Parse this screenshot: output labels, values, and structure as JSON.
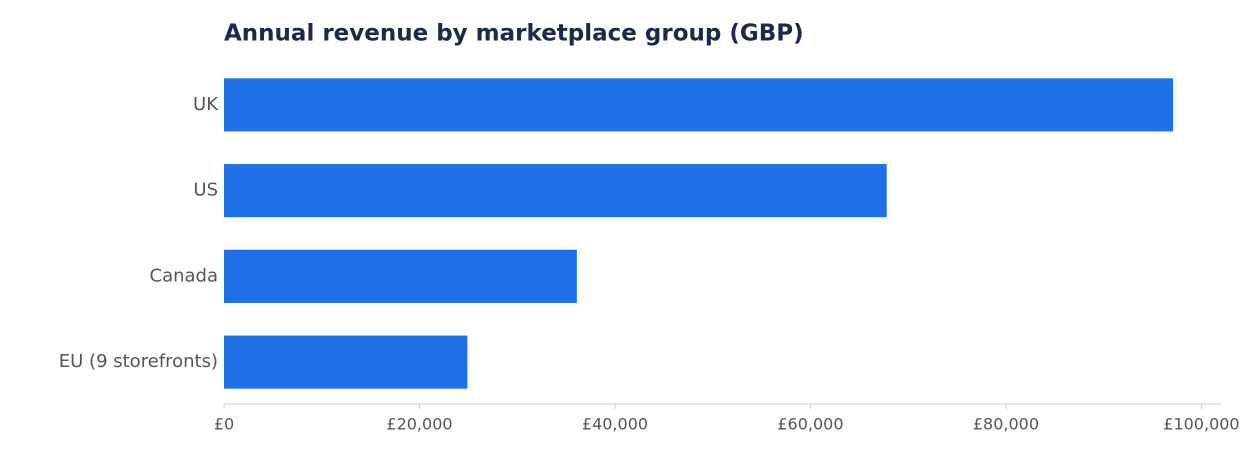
{
  "chart_data": {
    "type": "hbar",
    "title": "Annual revenue by marketplace group (GBP)",
    "categories": [
      "UK",
      "US",
      "Canada",
      "EU (9 storefronts)"
    ],
    "values": [
      97100,
      67800,
      36100,
      24900
    ],
    "color": "#2070e8",
    "xlim": [
      0,
      102000
    ],
    "xticks": [
      {
        "value": 0,
        "label": "£0"
      },
      {
        "value": 20000,
        "label": "£20,000"
      },
      {
        "value": 40000,
        "label": "£40,000"
      },
      {
        "value": 60000,
        "label": "£60,000"
      },
      {
        "value": 80000,
        "label": "£80,000"
      },
      {
        "value": 100000,
        "label": "£100,000"
      }
    ],
    "grid": false
  }
}
